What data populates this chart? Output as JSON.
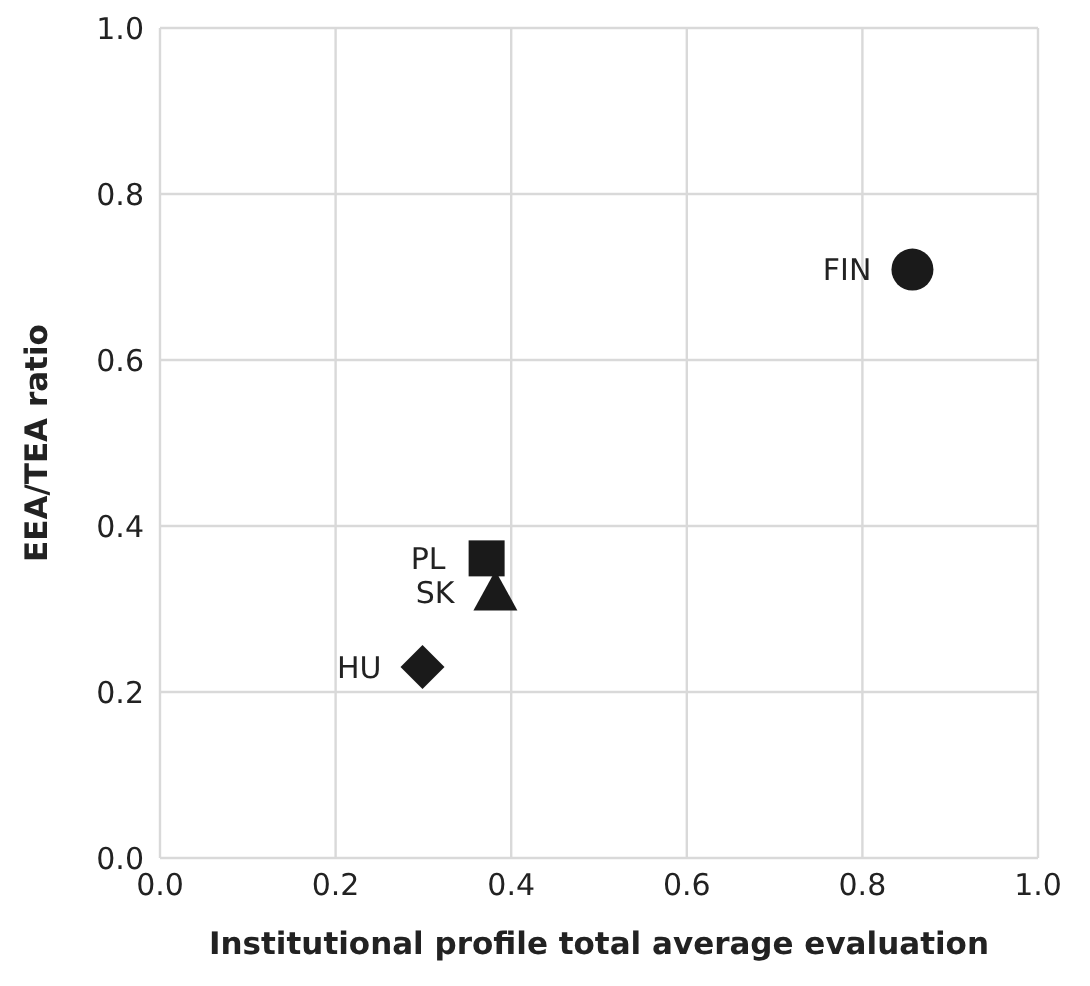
{
  "chart_data": {
    "type": "scatter",
    "xlabel": "Institutional profile total average evaluation",
    "ylabel": "EEA/TEA ratio",
    "xlim": [
      0,
      1
    ],
    "ylim": [
      0,
      1
    ],
    "xticks": [
      {
        "value": 0,
        "label": "0.0"
      },
      0.2,
      0.4,
      0.6,
      0.8,
      {
        "value": 1,
        "label": "1.0"
      }
    ],
    "yticks": [
      {
        "value": 0,
        "label": "0.0"
      },
      0.2,
      0.4,
      0.6,
      0.8,
      {
        "value": 1,
        "label": "1.0"
      }
    ],
    "grid": true,
    "legend": false,
    "series": [
      {
        "name": "FIN",
        "color": "#1a1a1a",
        "marker": "circle",
        "x": [
          0.857
        ],
        "values": [
          0.709
        ]
      },
      {
        "name": "PL",
        "color": "#1a1a1a",
        "marker": "square",
        "x": [
          0.372
        ],
        "values": [
          0.361
        ]
      },
      {
        "name": "SK",
        "color": "#1a1a1a",
        "marker": "triangle",
        "x": [
          0.382
        ],
        "values": [
          0.32
        ]
      },
      {
        "name": "HU",
        "color": "#1a1a1a",
        "marker": "diamond",
        "x": [
          0.299
        ],
        "values": [
          0.23
        ]
      }
    ]
  }
}
